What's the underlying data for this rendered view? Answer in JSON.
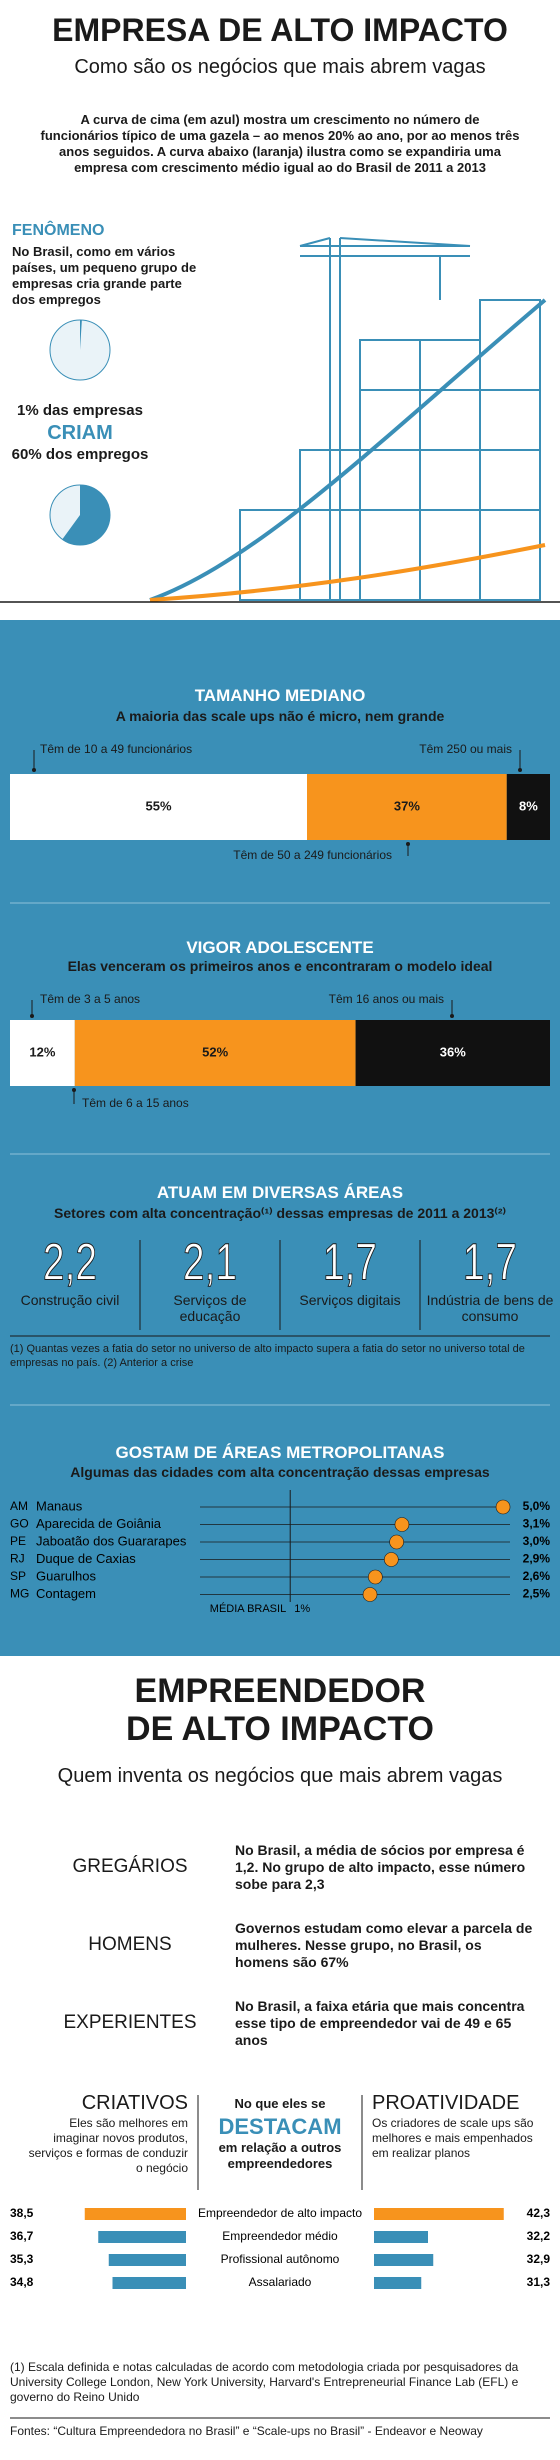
{
  "header": {
    "title": "EMPRESA DE ALTO IMPACTO",
    "subtitle": "Como são os negócios que mais abrem vagas",
    "intro": "A curva de cima (em azul) mostra um crescimento no número de funcionários típico de uma gazela – ao menos 20% ao ano, por ao menos três anos seguidos. A curva abaixo (laranja) ilustra como se expandiria uma empresa com crescimento médio igual ao do Brasil de 2011 a 2013"
  },
  "fenomeno": {
    "title": "FENÔMENO",
    "text": "No Brasil, como em vários países, um pequeno grupo de empresas cria grande parte dos empregos",
    "line1": "1% das empresas",
    "line2": "CRIAM",
    "line3": "60% dos empregos",
    "pies": [
      1,
      60
    ],
    "color": "#3a8fb7"
  },
  "tamanho": {
    "type": "stacked-bar",
    "title": "TAMANHO MEDIANO",
    "subtitle": "A maioria das scale ups não é micro, nem grande",
    "categories": [
      "Têm de 10 a 49 funcionários",
      "Têm de 50 a 249 funcionários",
      "Têm 250 ou mais"
    ],
    "values": [
      55,
      37,
      8
    ],
    "value_labels": [
      "55%",
      "37%",
      "8%"
    ],
    "colors": [
      "#ffffff",
      "#f7941d",
      "#111111"
    ],
    "xlim": [
      0,
      100
    ]
  },
  "vigor": {
    "type": "stacked-bar",
    "title": "VIGOR ADOLESCENTE",
    "subtitle": "Elas venceram os primeiros anos e encontraram o modelo ideal",
    "categories": [
      "Têm de 3 a 5 anos",
      "Têm de 6 a 15 anos",
      "Têm 16 anos ou mais"
    ],
    "values": [
      12,
      52,
      36
    ],
    "value_labels": [
      "12%",
      "52%",
      "36%"
    ],
    "colors": [
      "#ffffff",
      "#f7941d",
      "#111111"
    ],
    "xlim": [
      0,
      100
    ]
  },
  "areas": {
    "title": "ATUAM EM DIVERSAS ÁREAS",
    "subtitle": "Setores com alta concentração⁽¹⁾ dessas empresas de 2011 a 2013⁽²⁾",
    "categories": [
      "Construção civil",
      "Serviços de educação",
      "Serviços digitais",
      "Indústria de bens de consumo"
    ],
    "values": [
      2.2,
      2.1,
      1.7,
      1.7
    ],
    "value_labels": [
      "2,2",
      "2,1",
      "1,7",
      "1,7"
    ],
    "note": "(1) Quantas vezes a fatia do setor no universo de alto impacto supera a fatia do setor no universo total de empresas no país. (2) Anterior a crise"
  },
  "metro": {
    "type": "dot",
    "title": "GOSTAM DE ÁREAS METROPOLITANAS",
    "subtitle": "Algumas das cidades com alta concentração dessas empresas",
    "states": [
      "AM",
      "GO",
      "PE",
      "RJ",
      "SP",
      "MG"
    ],
    "cities": [
      "Manaus",
      "Aparecida de Goiânia",
      "Jaboatão dos Guararapes",
      "Duque de Caxias",
      "Guarulhos",
      "Contagem"
    ],
    "values": [
      5.0,
      3.1,
      3.0,
      2.9,
      2.6,
      2.5
    ],
    "value_labels": [
      "5,0%",
      "3,1%",
      "3,0%",
      "2,9%",
      "2,6%",
      "2,5%"
    ],
    "average": 1,
    "average_name": "MÉDIA BRASIL",
    "average_label": "1%",
    "xlim": [
      0,
      5.3
    ],
    "color": "#f7941d"
  },
  "empreendedor": {
    "title_lines": [
      "EMPREENDEDOR",
      "DE ALTO IMPACTO"
    ],
    "subtitle": "Quem inventa os negócios que mais abrem vagas",
    "traits": [
      {
        "label": "GREGÁRIOS",
        "text": "No Brasil, a média de sócios por empresa é 1,2. No grupo de alto impacto, esse número sobe para 2,3"
      },
      {
        "label": "HOMENS",
        "text": "Governos estudam como elevar a parcela de mulheres. Nesse grupo, no Brasil, os homens são 67%"
      },
      {
        "label": "EXPERIENTES",
        "text": "No Brasil, a faixa etária que mais concentra esse tipo de empreendedor vai de 49 e 65 anos"
      }
    ],
    "left_title": "CRIATIVOS",
    "left_text": "Eles são melhores em imaginar novos produtos, serviços e formas de conduzir o negócio",
    "mid_top": "No que eles se",
    "mid_big": "DESTACAM",
    "mid_bottom": "em relação a outros empreendedores",
    "right_title": "PROATIVIDADE",
    "right_text": "Os criadores de scale ups são melhores e mais empenhados em realizar planos"
  },
  "comparison": {
    "type": "butterfly-bar",
    "categories": [
      "Empreendedor de alto impacto",
      "Empreendedor médio",
      "Profissional autônomo",
      "Assalariado"
    ],
    "series": [
      {
        "name": "CRIATIVOS",
        "values": [
          38.5,
          36.7,
          35.3,
          34.8
        ],
        "value_labels": [
          "38,5",
          "36,7",
          "35,3",
          "34,8"
        ]
      },
      {
        "name": "PROATIVIDADE",
        "values": [
          42.3,
          32.2,
          32.9,
          31.3
        ],
        "value_labels": [
          "42,3",
          "32,2",
          "32,9",
          "31,3"
        ]
      }
    ],
    "colors": [
      "#f7941d",
      "#3a8fb7",
      "#3a8fb7",
      "#3a8fb7"
    ],
    "xlim": [
      25,
      45
    ]
  },
  "footer": {
    "note": "(1) Escala definida e notas calculadas de acordo com metodologia criada por pesquisadores da University College London, New York University, Harvard's Entrepreneurial Finance Lab (EFL) e governo do Reino Unido",
    "sources": "Fontes: “Cultura Empreendedora no Brasil” e “Scale-ups no Brasil” - Endeavor e Neoway"
  }
}
